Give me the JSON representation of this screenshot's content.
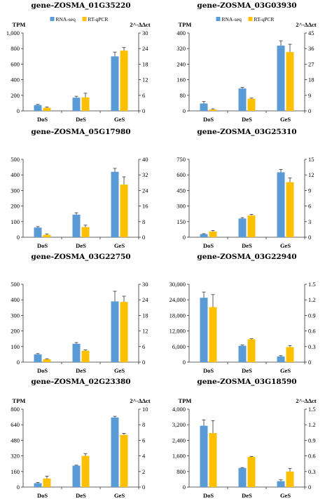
{
  "colors": {
    "rna": "#5b9bd5",
    "qpcr": "#ffc000",
    "axis": "#333333"
  },
  "chart_data": [
    {
      "type": "bar",
      "title": "gene-ZOSMA_01G35220",
      "categories": [
        "DoS",
        "DeS",
        "GeS"
      ],
      "ylabel": "TPM",
      "y2label": "2^-ΔΔct",
      "ylim": [
        0,
        1000
      ],
      "yticks": [
        0,
        200,
        400,
        600,
        800,
        "1,000"
      ],
      "y2lim": [
        0,
        30
      ],
      "y2ticks": [
        0,
        6,
        12,
        18,
        24,
        30
      ],
      "legend": [
        "RNA-seq",
        "RT-qPCR"
      ],
      "series": [
        {
          "name": "RNA-seq",
          "axis": "left",
          "values": [
            75,
            170,
            700
          ],
          "errors": [
            8,
            18,
            55
          ]
        },
        {
          "name": "RT-qPCR",
          "axis": "right",
          "values": [
            1.2,
            5.2,
            23.2
          ],
          "errors": [
            0.3,
            1.6,
            1.2
          ]
        }
      ]
    },
    {
      "type": "bar",
      "title": "gene-ZOSMA_03G03930",
      "categories": [
        "DoS",
        "DeS",
        "GeS"
      ],
      "ylabel": "TPM",
      "y2label": "2^-ΔΔct",
      "ylim": [
        0,
        400
      ],
      "yticks": [
        0,
        80,
        160,
        240,
        320,
        400
      ],
      "y2lim": [
        0,
        45
      ],
      "y2ticks": [
        0,
        9,
        18,
        27,
        36,
        45
      ],
      "legend": [
        "RNA-seq",
        "RT-qPCR"
      ],
      "series": [
        {
          "name": "RNA-seq",
          "axis": "left",
          "values": [
            38,
            115,
            335
          ],
          "errors": [
            10,
            6,
            25
          ]
        },
        {
          "name": "RT-qPCR",
          "axis": "right",
          "values": [
            0.8,
            7.0,
            34.0
          ],
          "errors": [
            0.4,
            0.4,
            4.5
          ]
        }
      ]
    },
    {
      "type": "bar",
      "title": "gene-ZOSMA_05G17980",
      "categories": [
        "DoS",
        "DeS",
        "GeS"
      ],
      "ylabel": "",
      "y2label": "",
      "ylim": [
        0,
        500
      ],
      "yticks": [
        0,
        100,
        200,
        300,
        400,
        500
      ],
      "y2lim": [
        0,
        40
      ],
      "y2ticks": [
        0,
        8,
        16,
        24,
        32,
        40
      ],
      "legend": [],
      "series": [
        {
          "name": "",
          "axis": "left",
          "values": [
            62,
            145,
            420
          ],
          "errors": [
            6,
            12,
            22
          ]
        },
        {
          "name": "",
          "axis": "right",
          "values": [
            1.2,
            5.2,
            27.0
          ],
          "errors": [
            0.5,
            1.0,
            4.0
          ]
        }
      ]
    },
    {
      "type": "bar",
      "title": "gene-ZOSMA_03G25310",
      "categories": [
        "DoS",
        "DeS",
        "GeS"
      ],
      "ylabel": "",
      "y2label": "",
      "ylim": [
        0,
        750
      ],
      "yticks": [
        0,
        150,
        300,
        450,
        600,
        750
      ],
      "y2lim": [
        0,
        15
      ],
      "y2ticks": [
        0,
        3,
        6,
        9,
        12,
        15
      ],
      "legend": [],
      "series": [
        {
          "name": "",
          "axis": "left",
          "values": [
            30,
            180,
            625
          ],
          "errors": [
            4,
            8,
            28
          ]
        },
        {
          "name": "",
          "axis": "right",
          "values": [
            1.1,
            4.2,
            10.6
          ],
          "errors": [
            0.2,
            0.2,
            0.8
          ]
        }
      ]
    },
    {
      "type": "bar",
      "title": "gene-ZOSMA_03G22750",
      "categories": [
        "DoS",
        "DeS",
        "GeS"
      ],
      "ylabel": "",
      "y2label": "",
      "ylim": [
        0,
        500
      ],
      "yticks": [
        0,
        100,
        200,
        300,
        400,
        500
      ],
      "y2lim": [
        0,
        30
      ],
      "y2ticks": [
        0,
        6,
        12,
        18,
        24,
        30
      ],
      "legend": [],
      "series": [
        {
          "name": "",
          "axis": "left",
          "values": [
            50,
            118,
            390
          ],
          "errors": [
            5,
            8,
            65
          ]
        },
        {
          "name": "",
          "axis": "right",
          "values": [
            1.1,
            4.4,
            23.2
          ],
          "errors": [
            0.2,
            0.3,
            2.2
          ]
        }
      ]
    },
    {
      "type": "bar",
      "title": "gene-ZOSMA_03G22940",
      "categories": [
        "DoS",
        "DeS",
        "GeS"
      ],
      "ylabel": "",
      "y2label": "",
      "ylim": [
        0,
        30000
      ],
      "yticks": [
        0,
        "6,000",
        "12,000",
        "18,000",
        "24,000",
        "30,000"
      ],
      "y2lim": [
        0,
        1.5
      ],
      "y2ticks": [
        0,
        0.3,
        0.6,
        0.9,
        1.2,
        1.5
      ],
      "legend": [],
      "series": [
        {
          "name": "",
          "axis": "left",
          "values": [
            24800,
            6300,
            2200
          ],
          "errors": [
            2200,
            300,
            300
          ]
        },
        {
          "name": "",
          "axis": "right",
          "values": [
            1.06,
            0.44,
            0.29
          ],
          "errors": [
            0.24,
            0.01,
            0.03
          ]
        }
      ]
    },
    {
      "type": "bar",
      "title": "gene-ZOSMA_02G23380",
      "categories": [
        "DoS",
        "DeS",
        "GeS"
      ],
      "ylabel": "TPM",
      "y2label": "2^-ΔΔct",
      "ylim": [
        0,
        800
      ],
      "yticks": [
        0,
        160,
        320,
        480,
        640,
        800
      ],
      "y2lim": [
        0,
        10
      ],
      "y2ticks": [
        0,
        2,
        4,
        6,
        8,
        10
      ],
      "legend": [],
      "series": [
        {
          "name": "",
          "axis": "left",
          "values": [
            40,
            220,
            715
          ],
          "errors": [
            8,
            5,
            12
          ]
        },
        {
          "name": "",
          "axis": "right",
          "values": [
            1.1,
            4.0,
            6.7
          ],
          "errors": [
            0.3,
            0.3,
            0.2
          ]
        }
      ]
    },
    {
      "type": "bar",
      "title": "gene-ZOSMA_03G18590",
      "categories": [
        "DoS",
        "DeS",
        "GeS"
      ],
      "ylabel": "TPM",
      "y2label": "2^-ΔΔct",
      "ylim": [
        0,
        4000
      ],
      "yticks": [
        0,
        800,
        "1,600",
        "2,400",
        "3,200",
        "4,000"
      ],
      "y2lim": [
        0,
        1.5
      ],
      "y2ticks": [
        0,
        0.3,
        0.6,
        0.9,
        1.2,
        1.5
      ],
      "legend": [],
      "series": [
        {
          "name": "",
          "axis": "left",
          "values": [
            3150,
            980,
            300
          ],
          "errors": [
            300,
            20,
            70
          ]
        },
        {
          "name": "",
          "axis": "right",
          "values": [
            1.04,
            0.58,
            0.3
          ],
          "errors": [
            0.24,
            0.01,
            0.06
          ]
        }
      ]
    }
  ]
}
